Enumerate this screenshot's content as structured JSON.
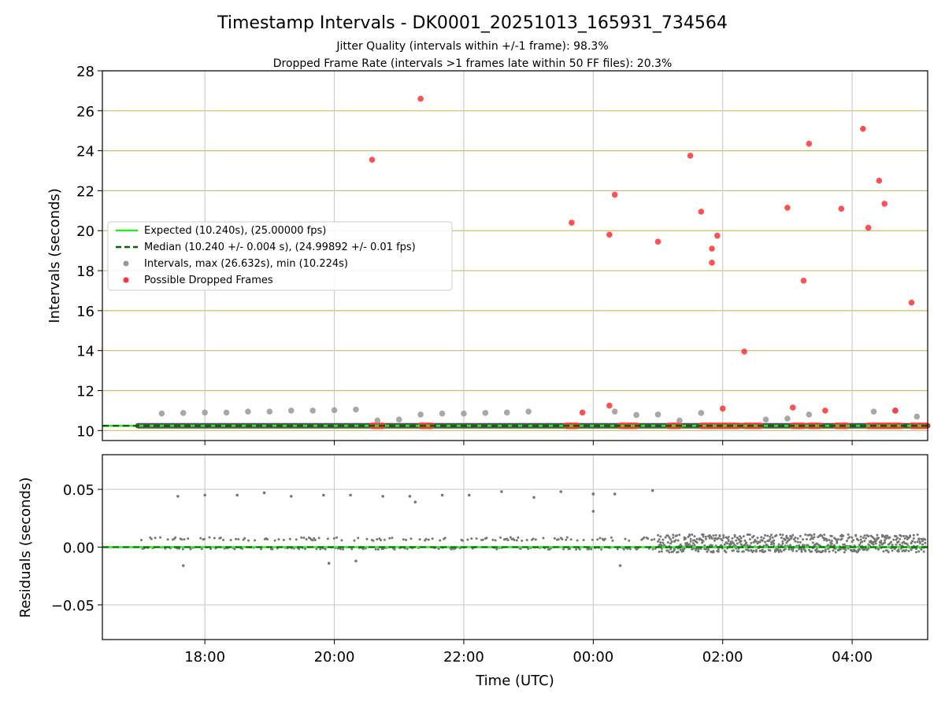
{
  "chart_data": {
    "title": "Timestamp Intervals - DK0001_20251013_165931_734564",
    "subtitle_lines": [
      "Jitter Quality (intervals within +/-1 frame): 98.3%",
      "Dropped Frame Rate (intervals >1 frames late within 50 FF files): 20.3%"
    ],
    "xlabel": "Time (UTC)",
    "x_ticks": [
      "18:00",
      "20:00",
      "22:00",
      "00:00",
      "02:00",
      "04:00"
    ],
    "panels": [
      {
        "type": "scatter",
        "ylabel": "Intervals (seconds)",
        "ylim": [
          9.5,
          28
        ],
        "y_ticks": [
          "10",
          "12",
          "14",
          "16",
          "18",
          "20",
          "22",
          "24",
          "26",
          "28"
        ],
        "legend_position": "center-left",
        "legend": [
          "Expected (10.240s), (25.00000 fps)",
          "Median (10.240 +/- 0.004 s), (24.99892 +/- 0.01 fps)",
          "Intervals, max (26.632s), min (10.224s)",
          "Possible Dropped Frames"
        ],
        "colors": {
          "expected": "#22ee22",
          "median": "#006400",
          "intervals": "#999999",
          "dropped": "#ff3333",
          "grid": "#cdbb66"
        },
        "expected_interval": 10.24,
        "median_interval": 10.24,
        "interval_points": [
          [
            "17:20",
            10.85
          ],
          [
            "17:40",
            10.88
          ],
          [
            "18:00",
            10.9
          ],
          [
            "18:20",
            10.9
          ],
          [
            "18:40",
            10.95
          ],
          [
            "19:00",
            10.95
          ],
          [
            "19:20",
            11.0
          ],
          [
            "19:40",
            11.0
          ],
          [
            "20:00",
            11.02
          ],
          [
            "20:20",
            11.05
          ],
          [
            "20:40",
            10.5
          ],
          [
            "21:00",
            10.55
          ],
          [
            "21:20",
            10.8
          ],
          [
            "21:40",
            10.85
          ],
          [
            "22:00",
            10.85
          ],
          [
            "22:20",
            10.88
          ],
          [
            "22:40",
            10.9
          ],
          [
            "23:00",
            10.95
          ],
          [
            "00:20",
            10.95
          ],
          [
            "00:40",
            10.78
          ],
          [
            "01:00",
            10.8
          ],
          [
            "01:20",
            10.5
          ],
          [
            "01:40",
            10.88
          ],
          [
            "02:40",
            10.55
          ],
          [
            "03:00",
            10.6
          ],
          [
            "03:20",
            10.8
          ],
          [
            "04:20",
            10.95
          ],
          [
            "04:40",
            11.0
          ],
          [
            "05:00",
            10.7
          ]
        ],
        "dropped_points": [
          [
            "20:35",
            23.55
          ],
          [
            "21:20",
            26.6
          ],
          [
            "23:40",
            20.4
          ],
          [
            "23:50",
            10.9
          ],
          [
            "00:15",
            11.25
          ],
          [
            "00:20",
            21.8
          ],
          [
            "00:15",
            19.8
          ],
          [
            "01:00",
            19.45
          ],
          [
            "01:30",
            23.75
          ],
          [
            "01:40",
            20.95
          ],
          [
            "01:50",
            19.1
          ],
          [
            "01:50",
            18.4
          ],
          [
            "01:55",
            19.75
          ],
          [
            "02:00",
            11.1
          ],
          [
            "02:20",
            13.95
          ],
          [
            "03:00",
            21.15
          ],
          [
            "03:05",
            11.15
          ],
          [
            "03:15",
            17.5
          ],
          [
            "03:20",
            24.35
          ],
          [
            "03:35",
            11.0
          ],
          [
            "03:50",
            21.1
          ],
          [
            "04:10",
            25.1
          ],
          [
            "04:15",
            20.15
          ],
          [
            "04:25",
            22.5
          ],
          [
            "04:30",
            21.35
          ],
          [
            "04:40",
            11.0
          ],
          [
            "04:55",
            16.4
          ]
        ],
        "dropped_baseline_clusters": [
          [
            "20:35",
            "20:45"
          ],
          [
            "21:20",
            "21:30"
          ],
          [
            "23:35",
            "23:45"
          ],
          [
            "00:25",
            "00:40"
          ],
          [
            "01:10",
            "01:20"
          ],
          [
            "01:40",
            "02:15"
          ],
          [
            "02:20",
            "02:35"
          ],
          [
            "03:05",
            "03:15"
          ],
          [
            "03:20",
            "03:30"
          ],
          [
            "03:45",
            "03:55"
          ],
          [
            "04:15",
            "04:45"
          ],
          [
            "04:55",
            "05:10"
          ]
        ]
      },
      {
        "type": "scatter",
        "ylabel": "Residuals (seconds)",
        "ylim": [
          -0.08,
          0.08
        ],
        "y_ticks": [
          "0.05",
          "0.00",
          "−0.05"
        ],
        "colors": {
          "points": "#777777",
          "zero_line": "#22ee22",
          "median": "#006400"
        },
        "outliers": [
          [
            "17:35",
            0.044
          ],
          [
            "17:40",
            -0.016
          ],
          [
            "18:00",
            0.045
          ],
          [
            "18:30",
            0.045
          ],
          [
            "18:55",
            0.047
          ],
          [
            "19:20",
            0.044
          ],
          [
            "19:50",
            0.045
          ],
          [
            "19:55",
            -0.014
          ],
          [
            "20:15",
            0.045
          ],
          [
            "20:20",
            -0.012
          ],
          [
            "20:45",
            0.044
          ],
          [
            "21:10",
            0.044
          ],
          [
            "21:15",
            0.039
          ],
          [
            "21:40",
            0.045
          ],
          [
            "22:05",
            0.045
          ],
          [
            "22:35",
            0.048
          ],
          [
            "23:05",
            0.043
          ],
          [
            "23:30",
            0.048
          ],
          [
            "00:00",
            0.046
          ],
          [
            "00:00",
            0.046
          ],
          [
            "00:00",
            0.031
          ],
          [
            "00:20",
            0.046
          ],
          [
            "00:25",
            -0.016
          ],
          [
            "00:55",
            0.049
          ]
        ],
        "residual_band_density": "denser after 01:00"
      }
    ]
  }
}
